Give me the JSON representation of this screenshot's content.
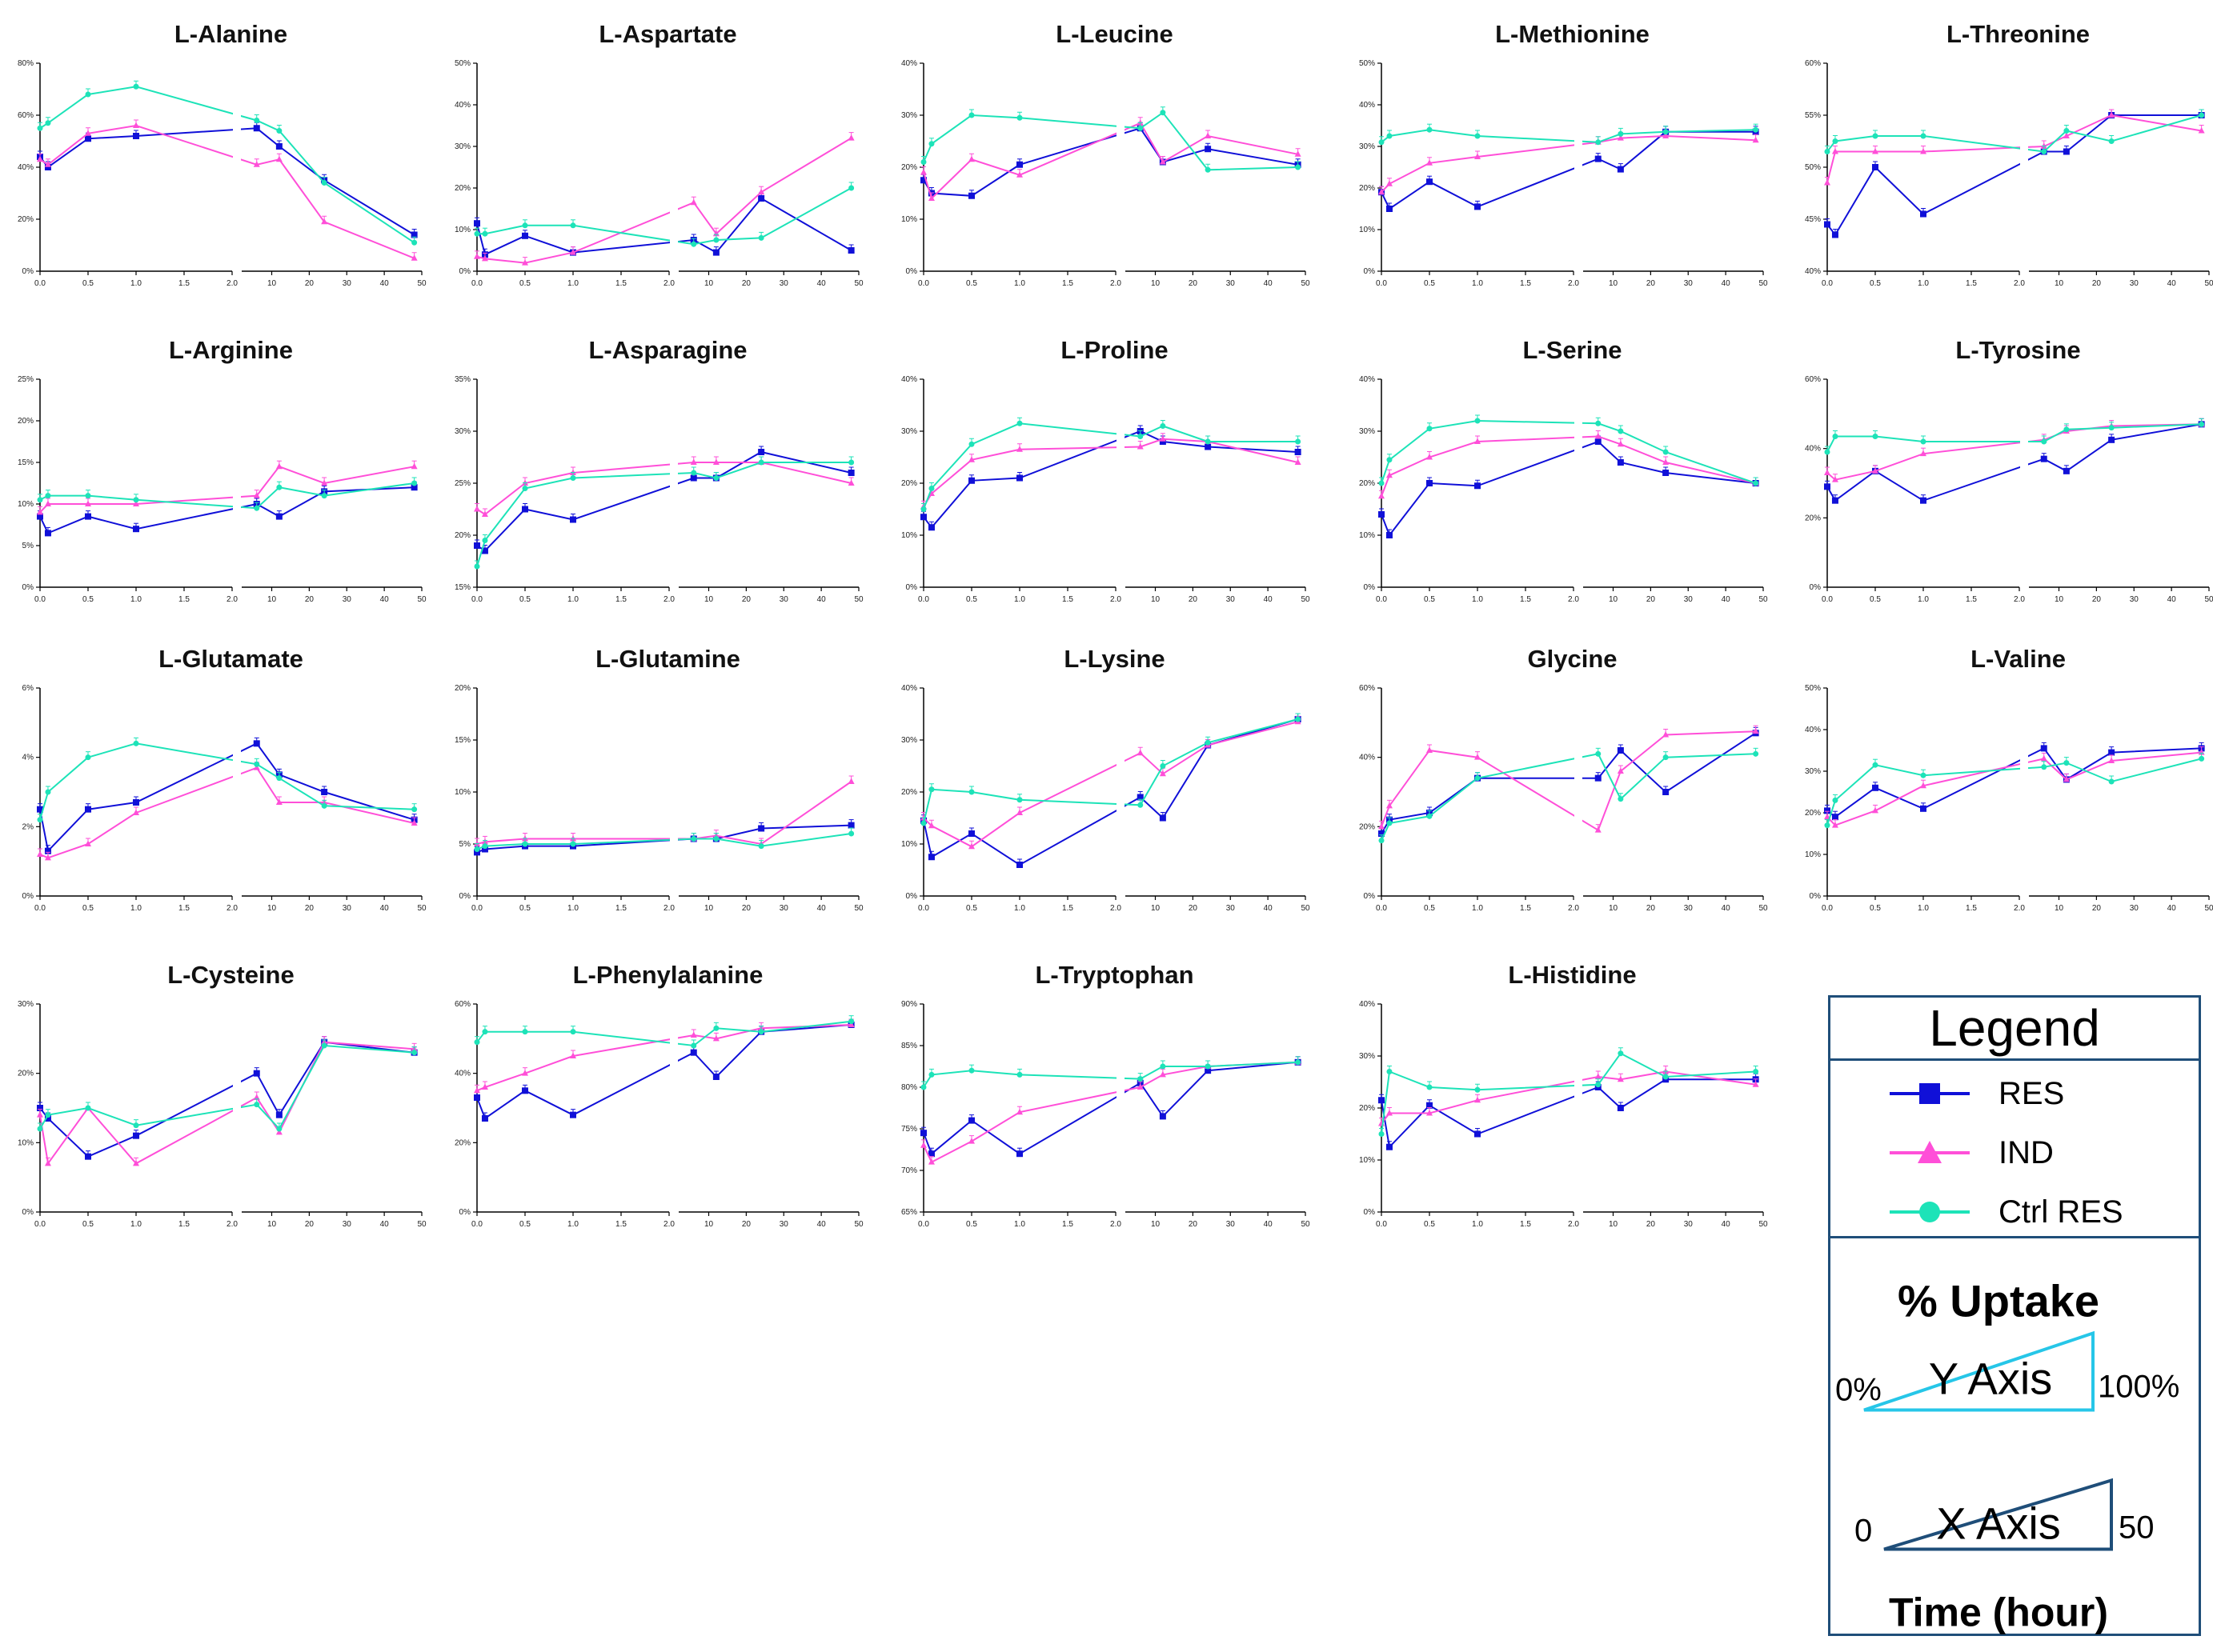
{
  "legend": {
    "title": "Legend",
    "entries": [
      {
        "name": "RES",
        "color": "#1010d8",
        "marker": "square"
      },
      {
        "name": "IND",
        "color": "#ff4fd8",
        "marker": "triangle"
      },
      {
        "name": "Ctrl RES",
        "color": "#1de3b8",
        "marker": "circle"
      }
    ],
    "y_key": {
      "title": "% Uptake",
      "label": "Y Axis",
      "min": "0%",
      "max": "100%"
    },
    "x_key": {
      "title": "Time (hour)",
      "label": "X Axis",
      "min": "0",
      "max": "50"
    }
  },
  "chart_data": [
    {
      "type": "line",
      "title": "L-Alanine",
      "ylim": [
        0,
        80
      ],
      "yticks": [
        "0%",
        "20%",
        "40%",
        "60%",
        "80%"
      ],
      "x": [
        0,
        0.083,
        0.5,
        1,
        6,
        12,
        24,
        48
      ],
      "series": [
        {
          "name": "RES",
          "values": [
            44,
            40,
            51,
            52,
            55,
            48,
            35,
            14
          ]
        },
        {
          "name": "IND",
          "values": [
            43,
            41,
            53,
            56,
            41,
            43,
            19,
            5
          ]
        },
        {
          "name": "Ctrl RES",
          "values": [
            55,
            57,
            68,
            71,
            58,
            54,
            34,
            11
          ]
        }
      ]
    },
    {
      "type": "line",
      "title": "L-Aspartate",
      "ylim": [
        0,
        50
      ],
      "yticks": [
        "0%",
        "10%",
        "20%",
        "30%",
        "40%",
        "50%"
      ],
      "x": [
        0,
        0.083,
        0.5,
        1,
        6,
        12,
        24,
        48
      ],
      "series": [
        {
          "name": "RES",
          "values": [
            11.5,
            4,
            8.5,
            4.5,
            7.5,
            4.5,
            17.5,
            5
          ]
        },
        {
          "name": "IND",
          "values": [
            3.5,
            3,
            2,
            4.5,
            16.5,
            9,
            19,
            32
          ]
        },
        {
          "name": "Ctrl RES",
          "values": [
            9,
            9,
            11,
            11,
            6.5,
            7.5,
            8,
            20
          ]
        }
      ]
    },
    {
      "type": "line",
      "title": "L-Leucine",
      "ylim": [
        0,
        40
      ],
      "yticks": [
        "0%",
        "10%",
        "20%",
        "30%",
        "40%"
      ],
      "x": [
        0,
        0.083,
        0.5,
        1,
        6,
        12,
        24,
        48
      ],
      "series": [
        {
          "name": "RES",
          "values": [
            17.5,
            15,
            14.5,
            20.5,
            27.5,
            21,
            23.5,
            20.5
          ]
        },
        {
          "name": "IND",
          "values": [
            19,
            14,
            21.5,
            18.5,
            28.5,
            21,
            26,
            22.5
          ]
        },
        {
          "name": "Ctrl RES",
          "values": [
            21,
            24.5,
            30,
            29.5,
            27.5,
            30.5,
            19.5,
            20
          ]
        }
      ]
    },
    {
      "type": "line",
      "title": "L-Methionine",
      "ylim": [
        0,
        50
      ],
      "yticks": [
        "0%",
        "10%",
        "20%",
        "30%",
        "40%",
        "50%"
      ],
      "x": [
        0,
        0.083,
        0.5,
        1,
        6,
        12,
        24,
        48
      ],
      "series": [
        {
          "name": "RES",
          "values": [
            19,
            15,
            21.5,
            15.5,
            27,
            24.5,
            33.5,
            33.5
          ]
        },
        {
          "name": "IND",
          "values": [
            19,
            21,
            26,
            27.5,
            31,
            32,
            32.5,
            31.5
          ]
        },
        {
          "name": "Ctrl RES",
          "values": [
            31,
            32.5,
            34,
            32.5,
            31,
            33,
            33.5,
            34
          ]
        }
      ]
    },
    {
      "type": "line",
      "title": "L-Threonine",
      "ylim": [
        40,
        60
      ],
      "yticks": [
        "40%",
        "45%",
        "50%",
        "55%",
        "60%"
      ],
      "x": [
        0,
        0.083,
        0.5,
        1,
        6,
        12,
        24,
        48
      ],
      "series": [
        {
          "name": "RES",
          "values": [
            44.5,
            43.5,
            50,
            45.5,
            51.5,
            51.5,
            55,
            55
          ]
        },
        {
          "name": "IND",
          "values": [
            48.5,
            51.5,
            51.5,
            51.5,
            52,
            53,
            55,
            53.5
          ]
        },
        {
          "name": "Ctrl RES",
          "values": [
            51.5,
            52.5,
            53,
            53,
            51.5,
            53.5,
            52.5,
            55
          ]
        }
      ]
    },
    {
      "type": "line",
      "title": "L-Arginine",
      "ylim": [
        0,
        25
      ],
      "yticks": [
        "0%",
        "5%",
        "10%",
        "15%",
        "20%",
        "25%"
      ],
      "x": [
        0,
        0.083,
        0.5,
        1,
        6,
        12,
        24,
        48
      ],
      "series": [
        {
          "name": "RES",
          "values": [
            8.5,
            6.5,
            8.5,
            7,
            10,
            8.5,
            11.5,
            12
          ]
        },
        {
          "name": "IND",
          "values": [
            9,
            10,
            10,
            10,
            11,
            14.5,
            12.5,
            14.5
          ]
        },
        {
          "name": "Ctrl RES",
          "values": [
            10.5,
            11,
            11,
            10.5,
            9.5,
            12,
            11,
            12.5
          ]
        }
      ]
    },
    {
      "type": "line",
      "title": "L-Asparagine",
      "ylim": [
        15,
        35
      ],
      "yticks": [
        "15%",
        "20%",
        "25%",
        "30%",
        "35%"
      ],
      "x": [
        0,
        0.083,
        0.5,
        1,
        6,
        12,
        24,
        48
      ],
      "series": [
        {
          "name": "RES",
          "values": [
            19,
            18.5,
            22.5,
            21.5,
            25.5,
            25.5,
            28,
            26
          ]
        },
        {
          "name": "IND",
          "values": [
            22.5,
            22,
            25,
            26,
            27,
            27,
            27,
            25
          ]
        },
        {
          "name": "Ctrl RES",
          "values": [
            17,
            19.5,
            24.5,
            25.5,
            26,
            25.5,
            27,
            27
          ]
        }
      ]
    },
    {
      "type": "line",
      "title": "L-Proline",
      "ylim": [
        0,
        40
      ],
      "yticks": [
        "0%",
        "10%",
        "20%",
        "30%",
        "40%"
      ],
      "x": [
        0,
        0.083,
        0.5,
        1,
        6,
        12,
        24,
        48
      ],
      "series": [
        {
          "name": "RES",
          "values": [
            13.5,
            11.5,
            20.5,
            21,
            30,
            28,
            27,
            26
          ]
        },
        {
          "name": "IND",
          "values": [
            15.5,
            18,
            24.5,
            26.5,
            27,
            28.5,
            28,
            24
          ]
        },
        {
          "name": "Ctrl RES",
          "values": [
            15,
            19,
            27.5,
            31.5,
            29,
            31,
            28,
            28
          ]
        }
      ]
    },
    {
      "type": "line",
      "title": "L-Serine",
      "ylim": [
        0,
        40
      ],
      "yticks": [
        "0%",
        "10%",
        "20%",
        "30%",
        "40%"
      ],
      "x": [
        0,
        0.083,
        0.5,
        1,
        6,
        12,
        24,
        48
      ],
      "series": [
        {
          "name": "RES",
          "values": [
            14,
            10,
            20,
            19.5,
            28,
            24,
            22,
            20
          ]
        },
        {
          "name": "IND",
          "values": [
            17.5,
            21.5,
            25,
            28,
            29,
            27.5,
            24,
            20
          ]
        },
        {
          "name": "Ctrl RES",
          "values": [
            20,
            24.5,
            30.5,
            32,
            31.5,
            30,
            26,
            20
          ]
        }
      ]
    },
    {
      "type": "line",
      "title": "L-Tyrosine",
      "ylim": [
        0,
        60
      ],
      "yticks": [
        "0%",
        "20%",
        "40%",
        "60%"
      ],
      "x": [
        0,
        0.083,
        0.5,
        1,
        6,
        12,
        24,
        48
      ],
      "series": [
        {
          "name": "RES",
          "values": [
            29,
            25,
            33.5,
            25,
            37,
            33.5,
            42.5,
            47
          ]
        },
        {
          "name": "IND",
          "values": [
            33,
            31,
            33.5,
            38.5,
            42.5,
            45,
            46.5,
            47
          ]
        },
        {
          "name": "Ctrl RES",
          "values": [
            39,
            43.5,
            43.5,
            42,
            42,
            45.5,
            46,
            47
          ]
        }
      ]
    },
    {
      "type": "line",
      "title": "L-Glutamate",
      "ylim": [
        0,
        6
      ],
      "yticks": [
        "0%",
        "2%",
        "4%",
        "6%"
      ],
      "x": [
        0,
        0.083,
        0.5,
        1,
        6,
        12,
        24,
        48
      ],
      "series": [
        {
          "name": "RES",
          "values": [
            2.5,
            1.3,
            2.5,
            2.7,
            4.4,
            3.5,
            3,
            2.2
          ]
        },
        {
          "name": "IND",
          "values": [
            1.2,
            1.1,
            1.5,
            2.4,
            3.7,
            2.7,
            2.7,
            2.1
          ]
        },
        {
          "name": "Ctrl RES",
          "values": [
            2.2,
            3,
            4,
            4.4,
            3.8,
            3.4,
            2.6,
            2.5
          ]
        }
      ]
    },
    {
      "type": "line",
      "title": "L-Glutamine",
      "ylim": [
        0,
        20
      ],
      "yticks": [
        "0%",
        "5%",
        "10%",
        "15%",
        "20%"
      ],
      "x": [
        0,
        0.083,
        0.5,
        1,
        6,
        12,
        24,
        48
      ],
      "series": [
        {
          "name": "RES",
          "values": [
            4.2,
            4.5,
            4.8,
            4.8,
            5.5,
            5.5,
            6.5,
            6.8
          ]
        },
        {
          "name": "IND",
          "values": [
            5,
            5.2,
            5.5,
            5.5,
            5.5,
            5.8,
            5,
            11
          ]
        },
        {
          "name": "Ctrl RES",
          "values": [
            4.5,
            4.8,
            5,
            5,
            5.5,
            5.5,
            4.8,
            6
          ]
        }
      ]
    },
    {
      "type": "line",
      "title": "L-Lysine",
      "ylim": [
        0,
        40
      ],
      "yticks": [
        "0%",
        "10%",
        "20%",
        "30%",
        "40%"
      ],
      "x": [
        0,
        0.083,
        0.5,
        1,
        6,
        12,
        24,
        48
      ],
      "series": [
        {
          "name": "RES",
          "values": [
            14.5,
            7.5,
            12,
            6,
            19,
            15,
            29,
            34
          ]
        },
        {
          "name": "IND",
          "values": [
            15,
            13.5,
            9.5,
            16,
            27.5,
            23.5,
            29,
            33.5
          ]
        },
        {
          "name": "Ctrl RES",
          "values": [
            14,
            20.5,
            20,
            18.5,
            17.5,
            25,
            29.5,
            34
          ]
        }
      ]
    },
    {
      "type": "line",
      "title": "Glycine",
      "ylim": [
        0,
        60
      ],
      "yticks": [
        "0%",
        "20%",
        "40%",
        "60%"
      ],
      "x": [
        0,
        0.083,
        0.5,
        1,
        6,
        12,
        24,
        48
      ],
      "series": [
        {
          "name": "RES",
          "values": [
            18,
            22,
            24,
            34,
            34,
            42,
            30,
            47
          ]
        },
        {
          "name": "IND",
          "values": [
            20,
            26,
            42,
            40,
            19,
            36,
            46.5,
            47.5
          ]
        },
        {
          "name": "Ctrl RES",
          "values": [
            16,
            21,
            23,
            34,
            41,
            28,
            40,
            41
          ]
        }
      ]
    },
    {
      "type": "line",
      "title": "L-Valine",
      "ylim": [
        0,
        50
      ],
      "yticks": [
        "0%",
        "10%",
        "20%",
        "30%",
        "40%",
        "50%"
      ],
      "x": [
        0,
        0.083,
        0.5,
        1,
        6,
        12,
        24,
        48
      ],
      "series": [
        {
          "name": "RES",
          "values": [
            20.5,
            19,
            26,
            21,
            35.5,
            28,
            34.5,
            35.5
          ]
        },
        {
          "name": "IND",
          "values": [
            19,
            17,
            20.5,
            26.5,
            33,
            28,
            32.5,
            34.5
          ]
        },
        {
          "name": "Ctrl RES",
          "values": [
            17,
            23,
            31.5,
            29,
            31,
            32,
            27.5,
            33
          ]
        }
      ]
    },
    {
      "type": "line",
      "title": "L-Cysteine",
      "ylim": [
        0,
        30
      ],
      "yticks": [
        "0%",
        "10%",
        "20%",
        "30%"
      ],
      "x": [
        0,
        0.083,
        0.5,
        1,
        6,
        12,
        24,
        48
      ],
      "series": [
        {
          "name": "RES",
          "values": [
            15,
            13.5,
            8,
            11,
            20,
            14,
            24.5,
            23
          ]
        },
        {
          "name": "IND",
          "values": [
            14,
            7,
            15,
            7,
            16.5,
            11.5,
            24.5,
            23.5
          ]
        },
        {
          "name": "Ctrl RES",
          "values": [
            12,
            14,
            15,
            12.5,
            15.5,
            12,
            24,
            23
          ]
        }
      ]
    },
    {
      "type": "line",
      "title": "L-Phenylalanine",
      "ylim": [
        0,
        60
      ],
      "yticks": [
        "0%",
        "20%",
        "40%",
        "60%"
      ],
      "x": [
        0,
        0.083,
        0.5,
        1,
        6,
        12,
        24,
        48
      ],
      "series": [
        {
          "name": "RES",
          "values": [
            33,
            27,
            35,
            28,
            46,
            39,
            52,
            54
          ]
        },
        {
          "name": "IND",
          "values": [
            35,
            36,
            40,
            45,
            51,
            50,
            53,
            54
          ]
        },
        {
          "name": "Ctrl RES",
          "values": [
            49,
            52,
            52,
            52,
            48,
            53,
            52,
            55
          ]
        }
      ]
    },
    {
      "type": "line",
      "title": "L-Tryptophan",
      "ylim": [
        65,
        90
      ],
      "yticks": [
        "65%",
        "70%",
        "75%",
        "80%",
        "85%",
        "90%"
      ],
      "x": [
        0,
        0.083,
        0.5,
        1,
        6,
        12,
        24,
        48
      ],
      "series": [
        {
          "name": "RES",
          "values": [
            74.5,
            72,
            76,
            72,
            80.5,
            76.5,
            82,
            83
          ]
        },
        {
          "name": "IND",
          "values": [
            73,
            71,
            73.5,
            77,
            80,
            81.5,
            82.5,
            83
          ]
        },
        {
          "name": "Ctrl RES",
          "values": [
            80,
            81.5,
            82,
            81.5,
            81,
            82.5,
            82.5,
            83
          ]
        }
      ]
    },
    {
      "type": "line",
      "title": "L-Histidine",
      "ylim": [
        0,
        40
      ],
      "yticks": [
        "0%",
        "10%",
        "20%",
        "30%",
        "40%"
      ],
      "x": [
        0,
        0.083,
        0.5,
        1,
        6,
        12,
        24,
        48
      ],
      "series": [
        {
          "name": "RES",
          "values": [
            21.5,
            12.5,
            20.5,
            15,
            24,
            20,
            25.5,
            25.5
          ]
        },
        {
          "name": "IND",
          "values": [
            17,
            19,
            19,
            21.5,
            26,
            25.5,
            27,
            24.5
          ]
        },
        {
          "name": "Ctrl RES",
          "values": [
            15,
            27,
            24,
            23.5,
            24.5,
            30.5,
            26,
            27
          ]
        }
      ]
    }
  ]
}
